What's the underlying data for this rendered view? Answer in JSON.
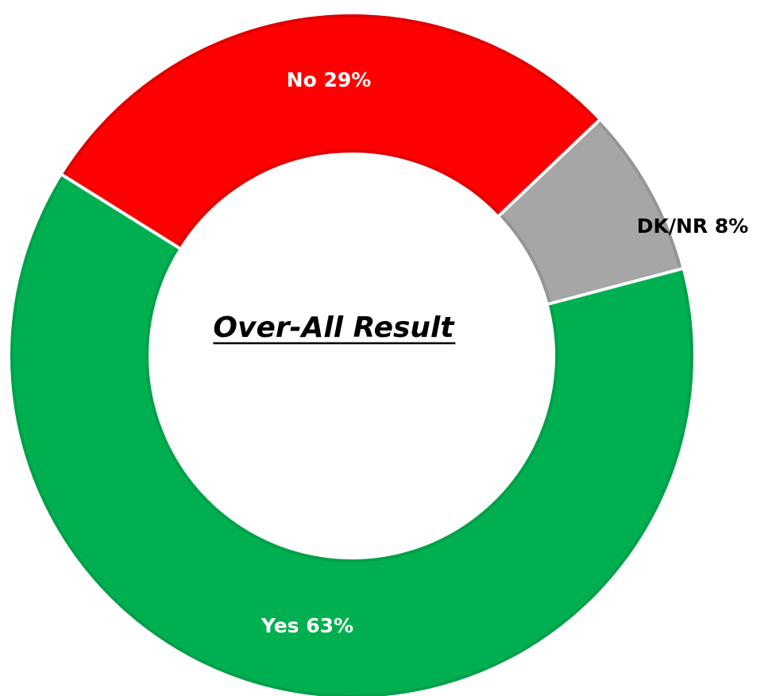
{
  "chart_data": {
    "type": "pie",
    "variant": "doughnut",
    "title": "Over-All Result",
    "title_position": "center",
    "legend": "none",
    "slices": [
      {
        "label": "No",
        "value": 29,
        "display": "No 29%",
        "color": "#ff0000",
        "border_color": "#e00000",
        "label_color": "#ffffff",
        "label_position": "inside"
      },
      {
        "label": "DK/NR",
        "value": 8,
        "display": "DK/NR 8%",
        "color": "#a6a6a6",
        "border_color": "#959595",
        "label_color": "#000000",
        "label_position": "outside"
      },
      {
        "label": "Yes",
        "value": 63,
        "display": "Yes 63%",
        "color": "#00b050",
        "border_color": "#00a04a",
        "label_color": "#ffffff",
        "label_position": "inside"
      }
    ],
    "start_angle_degrees": 302,
    "direction": "clockwise",
    "background": "#ffffff"
  }
}
